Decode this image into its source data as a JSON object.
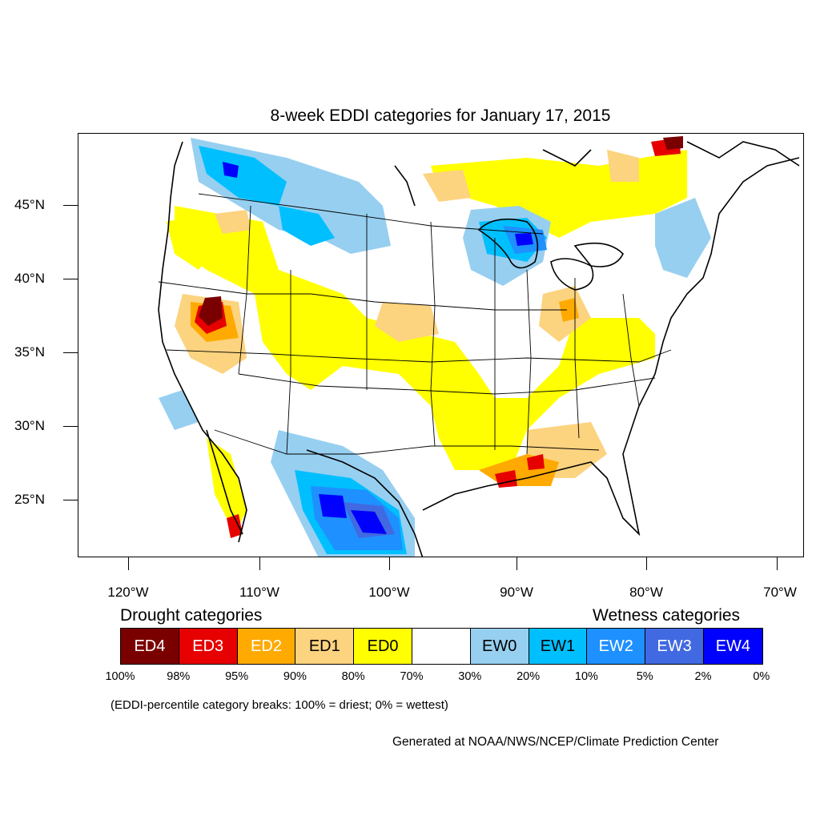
{
  "title": "8-week EDDI categories for January 17, 2015",
  "axes": {
    "y_labels": [
      "45°N",
      "40°N",
      "35°N",
      "30°N",
      "25°N"
    ],
    "x_labels": [
      "120°W",
      "110°W",
      "100°W",
      "90°W",
      "80°W",
      "70°W"
    ]
  },
  "legend": {
    "drought_heading": "Drought categories",
    "wetness_heading": "Wetness categories",
    "categories": [
      {
        "label": "ED4",
        "color": "#7a0000",
        "text_color": "#ffffff"
      },
      {
        "label": "ED3",
        "color": "#e60000",
        "text_color": "#ffffff"
      },
      {
        "label": "ED2",
        "color": "#ffaa00",
        "text_color": "#ffffff"
      },
      {
        "label": "ED1",
        "color": "#fcd37f",
        "text_color": "#000000"
      },
      {
        "label": "ED0",
        "color": "#ffff00",
        "text_color": "#000000"
      },
      {
        "label": "",
        "color": "#ffffff",
        "text_color": "#000000"
      },
      {
        "label": "EW0",
        "color": "#97cff0",
        "text_color": "#000000"
      },
      {
        "label": "EW1",
        "color": "#00bfff",
        "text_color": "#000000"
      },
      {
        "label": "EW2",
        "color": "#1e90ff",
        "text_color": "#ffffff"
      },
      {
        "label": "EW3",
        "color": "#4169e1",
        "text_color": "#ffffff"
      },
      {
        "label": "EW4",
        "color": "#0000ff",
        "text_color": "#ffffff"
      }
    ],
    "breaks": [
      "100%",
      "98%",
      "95%",
      "90%",
      "80%",
      "70%",
      "30%",
      "20%",
      "10%",
      "5%",
      "2%",
      "0%"
    ],
    "note": "(EDDI-percentile category breaks: 100% = driest; 0% = wettest)"
  },
  "credit": "Generated at NOAA/NWS/NCEP/Climate Prediction Center"
}
